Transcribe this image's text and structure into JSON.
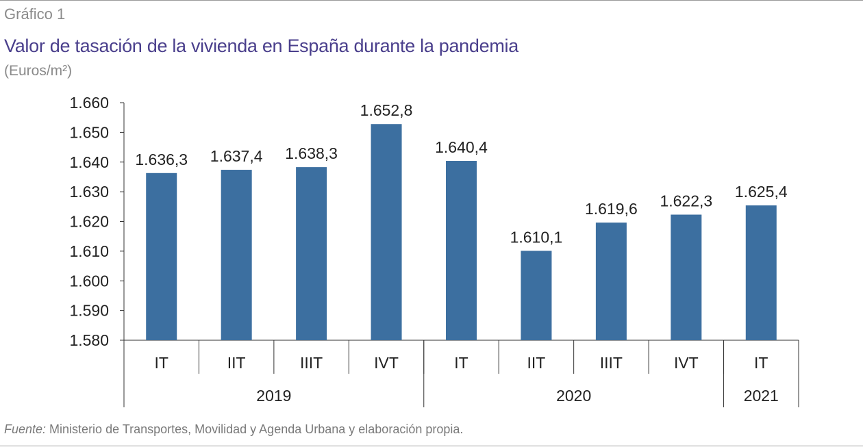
{
  "header": {
    "figure_label": "Gráfico 1",
    "title": "Valor de tasación de la vivienda en España durante la pandemia",
    "subtitle": "(Euros/m²)"
  },
  "footer": {
    "source_prefix": "Fuente:",
    "source_text": " Ministerio de Transportes, Movilidad y Agenda Urbana y elaboración propia."
  },
  "colors": {
    "bar": "#3c6fa0",
    "title": "#4a3f8c",
    "axis": "#333333"
  },
  "chart_data": {
    "type": "bar",
    "title": "Valor de tasación de la vivienda en España durante la pandemia",
    "ylabel": "(Euros/m²)",
    "xlabel": "",
    "ylim": [
      1580,
      1660
    ],
    "yticks": [
      1580,
      1590,
      1600,
      1610,
      1620,
      1630,
      1640,
      1650,
      1660
    ],
    "ytick_labels": [
      "1.580",
      "1.590",
      "1.600",
      "1.610",
      "1.620",
      "1.630",
      "1.640",
      "1.650",
      "1.660"
    ],
    "categories": [
      "IT",
      "IIT",
      "IIIT",
      "IVT",
      "IT",
      "IIT",
      "IIIT",
      "IVT",
      "IT"
    ],
    "values": [
      1636.3,
      1637.4,
      1638.3,
      1652.8,
      1640.4,
      1610.1,
      1619.6,
      1622.3,
      1625.4
    ],
    "value_labels": [
      "1.636,3",
      "1.637,4",
      "1.638,3",
      "1.652,8",
      "1.640,4",
      "1.610,1",
      "1.619,6",
      "1.622,3",
      "1.625,4"
    ],
    "groups": [
      {
        "label": "2019",
        "count": 4
      },
      {
        "label": "2020",
        "count": 4
      },
      {
        "label": "2021",
        "count": 1
      }
    ],
    "grid": false,
    "legend": "none"
  }
}
